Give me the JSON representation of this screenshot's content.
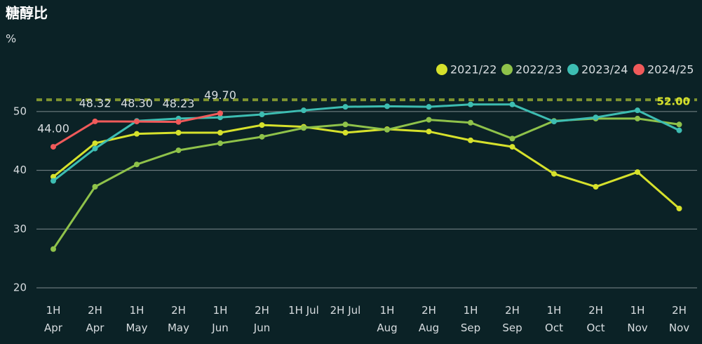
{
  "chart_data": {
    "type": "line",
    "title": "糖醇比",
    "y_label": "%",
    "categories": [
      "1H\nApr",
      "2H\nApr",
      "1H\nMay",
      "2H\nMay",
      "1H\nJun",
      "2H\nJun",
      "1H Jul",
      "2H Jul",
      "1H\nAug",
      "2H\nAug",
      "1H\nSep",
      "2H\nSep",
      "1H\nOct",
      "2H\nOct",
      "1H\nNov",
      "2H\nNov"
    ],
    "series": [
      {
        "name": "2021/22",
        "color": "#d6e12c",
        "values": [
          38.9,
          44.6,
          46.2,
          46.4,
          46.4,
          47.7,
          47.4,
          46.4,
          47.0,
          46.6,
          45.1,
          44.0,
          39.4,
          37.2,
          39.7,
          33.5
        ]
      },
      {
        "name": "2022/23",
        "color": "#8fc24a",
        "values": [
          26.6,
          37.2,
          41.0,
          43.4,
          44.6,
          45.7,
          47.2,
          47.8,
          46.9,
          48.6,
          48.1,
          45.4,
          48.4,
          48.8,
          48.8,
          47.8
        ]
      },
      {
        "name": "2023/24",
        "color": "#3dbdb2",
        "values": [
          38.2,
          43.7,
          48.4,
          48.8,
          49.0,
          49.5,
          50.2,
          50.8,
          50.9,
          50.8,
          51.2,
          51.2,
          48.3,
          49.0,
          50.2,
          46.8
        ]
      },
      {
        "name": "2024/25",
        "color": "#f05a5a",
        "values": [
          44.0,
          48.32,
          48.3,
          48.23,
          49.7,
          null,
          null,
          null,
          null,
          null,
          null,
          null,
          null,
          null,
          null,
          null
        ],
        "value_labels": [
          "44.00",
          "48.32",
          "48.30",
          "48.23",
          "49.70",
          null,
          null,
          null,
          null,
          null,
          null,
          null,
          null,
          null,
          null,
          null
        ]
      }
    ],
    "reference_line": {
      "value": 52,
      "label": "52.00",
      "color": "#7f9430",
      "label_color": "#d6e12c"
    },
    "ylim": [
      20,
      55
    ],
    "yticks": [
      20,
      30,
      40,
      50
    ],
    "grid": true,
    "legend": "top-right"
  }
}
